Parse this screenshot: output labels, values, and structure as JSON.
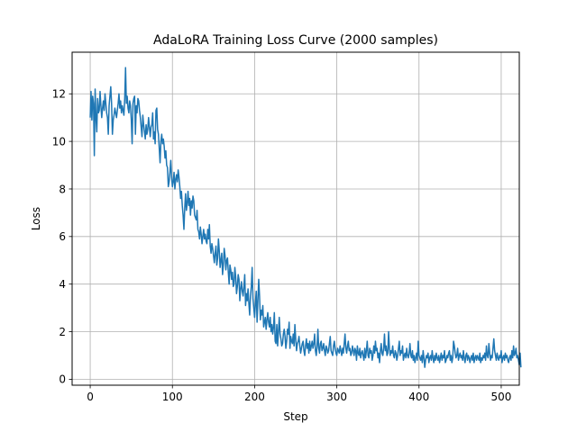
{
  "chart_data": {
    "type": "line",
    "title": "AdaLoRA Training Loss Curve (2000 samples)",
    "xlabel": "Step",
    "ylabel": "Loss",
    "xlim": [
      -22,
      522
    ],
    "ylim": [
      -0.25,
      13.75
    ],
    "xticks": [
      0,
      100,
      200,
      300,
      400,
      500
    ],
    "yticks": [
      0,
      2,
      4,
      6,
      8,
      10,
      12
    ],
    "grid": true,
    "legend": "none",
    "series": [
      {
        "color": "#1f77b4",
        "x_start": 0,
        "x_step": 1,
        "values": [
          11.0,
          12.1,
          10.9,
          11.9,
          11.6,
          9.4,
          12.2,
          11.0,
          10.4,
          11.8,
          11.2,
          11.3,
          12.1,
          11.5,
          11.0,
          11.4,
          11.7,
          11.3,
          12.0,
          11.6,
          11.2,
          11.0,
          10.3,
          11.5,
          11.9,
          12.3,
          11.6,
          10.3,
          10.9,
          11.1,
          11.4,
          11.2,
          11.0,
          11.3,
          11.6,
          12.0,
          11.4,
          11.7,
          11.2,
          11.5,
          11.3,
          11.1,
          11.8,
          13.1,
          11.6,
          11.9,
          11.4,
          11.2,
          11.7,
          11.5,
          10.9,
          9.9,
          11.6,
          11.8,
          11.9,
          10.3,
          11.5,
          11.2,
          11.8,
          11.7,
          11.3,
          11.0,
          10.6,
          10.2,
          11.1,
          10.7,
          10.4,
          10.1,
          10.7,
          10.3,
          10.5,
          11.0,
          10.6,
          10.2,
          10.6,
          10.7,
          11.2,
          10.1,
          10.4,
          9.9,
          11.3,
          11.4,
          10.5,
          10.3,
          9.7,
          9.1,
          10.0,
          10.3,
          9.9,
          10.1,
          9.8,
          9.3,
          9.6,
          9.0,
          8.9,
          8.1,
          8.3,
          8.7,
          9.2,
          8.5,
          8.1,
          8.3,
          8.7,
          8.0,
          8.4,
          8.6,
          8.3,
          8.8,
          8.5,
          8.1,
          7.6,
          7.9,
          7.3,
          6.9,
          6.3,
          7.2,
          7.8,
          7.1,
          7.4,
          7.9,
          7.3,
          7.6,
          6.9,
          7.5,
          7.2,
          7.7,
          7.5,
          6.9,
          6.8,
          6.7,
          7.1,
          6.3,
          6.2,
          5.9,
          6.4,
          6.1,
          5.7,
          6.0,
          6.3,
          5.9,
          6.1,
          5.8,
          5.7,
          6.3,
          5.9,
          6.5,
          5.6,
          5.3,
          5.7,
          5.5,
          5.2,
          4.9,
          5.3,
          5.6,
          4.8,
          5.1,
          5.9,
          5.4,
          4.7,
          5.0,
          5.3,
          4.4,
          4.8,
          5.5,
          5.2,
          4.6,
          5.0,
          5.1,
          4.5,
          4.0,
          4.8,
          4.6,
          4.2,
          4.5,
          3.9,
          4.0,
          4.7,
          4.3,
          3.6,
          3.9,
          4.4,
          4.2,
          3.3,
          3.8,
          4.1,
          3.7,
          3.5,
          3.9,
          4.4,
          3.1,
          3.6,
          3.3,
          3.8,
          3.2,
          2.7,
          3.5,
          3.9,
          4.7,
          3.4,
          3.0,
          2.6,
          3.2,
          3.7,
          2.4,
          3.3,
          4.2,
          3.5,
          2.5,
          2.9,
          2.7,
          3.1,
          2.2,
          2.4,
          2.6,
          2.1,
          2.5,
          2.8,
          2.4,
          2.2,
          2.6,
          2.0,
          2.3,
          1.9,
          2.2,
          2.8,
          1.6,
          1.5,
          2.3,
          1.4,
          2.0,
          2.6,
          1.9,
          1.7,
          1.4,
          1.5,
          1.9,
          2.1,
          1.8,
          1.3,
          1.6,
          2.1,
          1.9,
          2.4,
          1.3,
          1.8,
          1.6,
          1.5,
          1.9,
          1.4,
          2.3,
          1.7,
          1.2,
          1.5,
          1.6,
          1.8,
          1.4,
          1.1,
          1.3,
          1.5,
          1.6,
          1.2,
          1.0,
          1.4,
          1.7,
          1.3,
          1.5,
          1.1,
          1.6,
          1.2,
          1.4,
          1.6,
          1.3,
          1.5,
          1.9,
          1.2,
          1.0,
          1.4,
          2.1,
          1.3,
          1.1,
          1.5,
          1.6,
          1.2,
          1.3,
          1.5,
          1.2,
          1.0,
          1.4,
          1.3,
          1.1,
          1.2,
          1.5,
          1.8,
          1.2,
          1.1,
          1.0,
          1.4,
          1.6,
          1.3,
          1.1,
          1.0,
          1.3,
          1.2,
          1.1,
          1.4,
          1.2,
          1.0,
          1.3,
          1.1,
          1.5,
          1.9,
          1.3,
          1.1,
          1.4,
          1.6,
          1.2,
          1.3,
          1.0,
          1.1,
          1.4,
          1.2,
          1.0,
          1.3,
          1.2,
          0.8,
          1.4,
          1.1,
          1.0,
          1.3,
          0.9,
          1.1,
          1.2,
          1.0,
          0.8,
          1.3,
          0.9,
          1.2,
          1.6,
          1.0,
          0.9,
          1.3,
          1.1,
          1.2,
          0.8,
          1.0,
          1.4,
          1.1,
          1.6,
          1.2,
          1.3,
          0.9,
          1.1,
          0.7,
          1.2,
          1.5,
          1.1,
          1.0,
          1.3,
          1.9,
          1.2,
          1.4,
          1.0,
          1.1,
          2.0,
          1.3,
          1.0,
          1.2,
          1.1,
          1.4,
          1.0,
          0.9,
          1.2,
          1.1,
          0.8,
          1.0,
          1.3,
          1.6,
          1.0,
          1.2,
          1.1,
          1.4,
          0.8,
          1.0,
          1.1,
          0.9,
          1.3,
          1.0,
          0.9,
          1.1,
          1.5,
          1.0,
          0.9,
          1.2,
          0.8,
          1.0,
          0.7,
          0.9,
          1.1,
          0.8,
          1.6,
          1.0,
          0.9,
          0.8,
          1.0,
          0.7,
          1.2,
          0.9,
          0.5,
          0.8,
          1.0,
          0.9,
          1.1,
          0.7,
          0.9,
          1.0,
          0.8,
          1.2,
          0.9,
          0.7,
          1.0,
          0.8,
          1.1,
          0.9,
          0.8,
          1.0,
          0.7,
          0.9,
          1.1,
          0.8,
          1.0,
          0.9,
          1.2,
          0.7,
          0.8,
          1.0,
          0.9,
          1.1,
          1.2,
          0.8,
          1.0,
          0.7,
          0.9,
          1.6,
          1.4,
          1.1,
          0.9,
          1.0,
          1.3,
          0.8,
          1.0,
          1.1,
          0.9,
          1.0,
          0.8,
          1.2,
          0.9,
          0.7,
          1.0,
          1.1,
          0.8,
          1.0,
          0.9,
          0.7,
          0.9,
          1.0,
          0.8,
          1.1,
          0.7,
          0.9,
          1.0,
          0.8,
          1.0,
          0.9,
          0.8,
          1.1,
          0.7,
          0.9,
          0.8,
          1.0,
          0.9,
          1.1,
          0.8,
          1.4,
          1.0,
          0.9,
          1.5,
          1.1,
          0.8,
          1.0,
          0.9,
          1.3,
          1.7,
          1.2,
          1.0,
          0.8,
          1.1,
          0.9,
          0.8,
          1.0,
          0.9,
          1.2,
          0.7,
          0.9,
          1.0,
          0.8,
          1.1,
          0.9,
          1.0,
          0.8,
          0.7,
          0.9,
          1.0,
          0.8,
          1.2,
          0.9,
          1.4,
          1.0,
          1.1,
          1.3,
          0.9,
          1.0,
          0.8,
          0.6,
          1.1,
          0.5
        ]
      }
    ]
  }
}
